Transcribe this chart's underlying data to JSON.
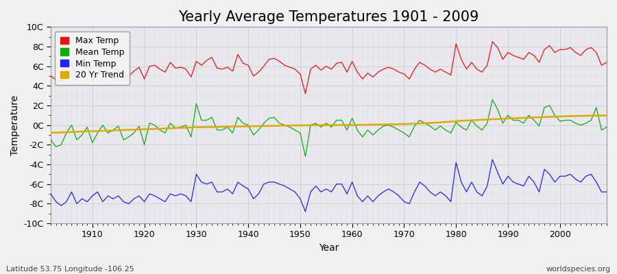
{
  "title": "Yearly Average Temperatures 1901 - 2009",
  "xlabel": "Year",
  "ylabel": "Temperature",
  "footnote_left": "Latitude 53.75 Longitude -106.25",
  "footnote_right": "worldspecies.org",
  "years": [
    1901,
    1902,
    1903,
    1904,
    1905,
    1906,
    1907,
    1908,
    1909,
    1910,
    1911,
    1912,
    1913,
    1914,
    1915,
    1916,
    1917,
    1918,
    1919,
    1920,
    1921,
    1922,
    1923,
    1924,
    1925,
    1926,
    1927,
    1928,
    1929,
    1930,
    1931,
    1932,
    1933,
    1934,
    1935,
    1936,
    1937,
    1938,
    1939,
    1940,
    1941,
    1942,
    1943,
    1944,
    1945,
    1946,
    1947,
    1948,
    1949,
    1950,
    1951,
    1952,
    1953,
    1954,
    1955,
    1956,
    1957,
    1958,
    1959,
    1960,
    1961,
    1962,
    1963,
    1964,
    1965,
    1966,
    1967,
    1968,
    1969,
    1970,
    1971,
    1972,
    1973,
    1974,
    1975,
    1976,
    1977,
    1978,
    1979,
    1980,
    1981,
    1982,
    1983,
    1984,
    1985,
    1986,
    1987,
    1988,
    1989,
    1990,
    1991,
    1992,
    1993,
    1994,
    1995,
    1996,
    1997,
    1998,
    1999,
    2000,
    2001,
    2002,
    2003,
    2004,
    2005,
    2006,
    2007,
    2008,
    2009
  ],
  "max_temp": [
    5.8,
    5.0,
    4.6,
    4.4,
    5.5,
    6.3,
    4.7,
    5.1,
    6.0,
    4.5,
    5.1,
    6.4,
    5.4,
    5.3,
    5.7,
    4.8,
    5.0,
    5.5,
    5.9,
    4.7,
    6.0,
    6.1,
    5.7,
    5.4,
    6.4,
    5.8,
    5.9,
    5.7,
    4.9,
    6.5,
    6.1,
    6.6,
    6.9,
    5.8,
    5.7,
    5.9,
    5.5,
    7.2,
    6.3,
    6.1,
    5.0,
    5.4,
    6.0,
    6.7,
    6.8,
    6.5,
    6.1,
    5.9,
    5.7,
    5.2,
    3.2,
    5.7,
    6.1,
    5.6,
    6.0,
    5.7,
    6.3,
    6.4,
    5.4,
    6.5,
    5.4,
    4.7,
    5.3,
    4.9,
    5.4,
    5.7,
    5.9,
    5.7,
    5.4,
    5.2,
    4.7,
    5.7,
    6.4,
    6.1,
    5.7,
    5.4,
    5.7,
    5.4,
    5.1,
    8.3,
    6.7,
    5.7,
    6.4,
    5.7,
    5.4,
    6.1,
    8.5,
    7.9,
    6.7,
    7.4,
    7.1,
    6.9,
    6.7,
    7.4,
    7.1,
    6.4,
    7.7,
    8.1,
    7.4,
    7.7,
    7.7,
    7.9,
    7.4,
    7.1,
    7.7,
    7.9,
    7.4,
    6.1,
    6.4
  ],
  "mean_temp": [
    -0.8,
    -1.5,
    -2.2,
    -2.0,
    -0.8,
    0.0,
    -1.5,
    -1.0,
    -0.2,
    -1.8,
    -0.8,
    0.0,
    -0.8,
    -0.5,
    -0.1,
    -1.5,
    -1.2,
    -0.8,
    -0.1,
    -2.0,
    0.2,
    0.0,
    -0.5,
    -0.8,
    0.2,
    -0.3,
    -0.2,
    0.0,
    -1.2,
    2.2,
    0.5,
    0.5,
    0.8,
    -0.5,
    -0.5,
    -0.2,
    -0.8,
    0.8,
    0.2,
    0.0,
    -1.0,
    -0.5,
    0.2,
    0.7,
    0.8,
    0.2,
    0.0,
    -0.2,
    -0.5,
    -0.8,
    -3.2,
    0.0,
    0.2,
    -0.2,
    0.2,
    -0.2,
    0.5,
    0.5,
    -0.5,
    0.7,
    -0.5,
    -1.2,
    -0.5,
    -1.0,
    -0.5,
    -0.1,
    0.0,
    -0.2,
    -0.5,
    -0.8,
    -1.2,
    -0.1,
    0.5,
    0.2,
    -0.1,
    -0.5,
    -0.1,
    -0.5,
    -0.8,
    0.3,
    -0.2,
    -0.5,
    0.5,
    -0.1,
    -0.5,
    0.2,
    2.6,
    1.6,
    0.2,
    1.0,
    0.5,
    0.5,
    0.2,
    1.0,
    0.5,
    -0.1,
    1.8,
    2.0,
    1.0,
    0.4,
    0.5,
    0.5,
    0.2,
    0.0,
    0.2,
    0.5,
    1.8,
    -0.5,
    -0.2
  ],
  "min_temp": [
    -8.2,
    -7.0,
    -7.8,
    -8.2,
    -7.8,
    -6.8,
    -8.0,
    -7.5,
    -7.8,
    -7.2,
    -6.8,
    -7.8,
    -7.2,
    -7.5,
    -7.2,
    -7.8,
    -8.0,
    -7.5,
    -7.2,
    -7.8,
    -7.0,
    -7.2,
    -7.5,
    -7.8,
    -7.0,
    -7.2,
    -7.0,
    -7.2,
    -7.8,
    -5.0,
    -5.8,
    -6.0,
    -5.8,
    -6.8,
    -6.8,
    -6.5,
    -7.0,
    -5.8,
    -6.2,
    -6.5,
    -7.5,
    -7.0,
    -6.0,
    -5.8,
    -5.8,
    -6.0,
    -6.2,
    -6.5,
    -6.8,
    -7.5,
    -8.8,
    -6.8,
    -6.2,
    -6.8,
    -6.5,
    -6.8,
    -6.0,
    -6.0,
    -7.0,
    -5.8,
    -7.2,
    -7.8,
    -7.2,
    -7.8,
    -7.2,
    -6.8,
    -6.5,
    -6.8,
    -7.2,
    -7.8,
    -8.0,
    -6.8,
    -5.8,
    -6.2,
    -6.8,
    -7.2,
    -6.8,
    -7.2,
    -7.8,
    -3.8,
    -5.8,
    -6.8,
    -5.8,
    -6.8,
    -7.2,
    -6.2,
    -3.5,
    -4.8,
    -6.0,
    -5.2,
    -5.8,
    -6.0,
    -6.2,
    -5.2,
    -5.8,
    -6.8,
    -4.5,
    -5.0,
    -5.8,
    -5.2,
    -5.2,
    -5.0,
    -5.5,
    -5.8,
    -5.2,
    -5.0,
    -5.8,
    -6.8,
    -6.8
  ],
  "trend_years": [
    1901,
    1902,
    1903,
    1904,
    1905,
    1906,
    1907,
    1908,
    1909,
    1910,
    1911,
    1912,
    1913,
    1914,
    1915,
    1916,
    1917,
    1918,
    1919,
    1920,
    1921,
    1922,
    1923,
    1924,
    1925,
    1926,
    1927,
    1928,
    1929,
    1930,
    1931,
    1932,
    1933,
    1934,
    1935,
    1936,
    1937,
    1938,
    1939,
    1940,
    1941,
    1942,
    1943,
    1944,
    1945,
    1946,
    1947,
    1948,
    1949,
    1950,
    1951,
    1952,
    1953,
    1954,
    1955,
    1956,
    1957,
    1958,
    1959,
    1960,
    1961,
    1962,
    1963,
    1964,
    1965,
    1966,
    1967,
    1968,
    1969,
    1970,
    1971,
    1972,
    1973,
    1974,
    1975,
    1976,
    1977,
    1978,
    1979,
    1980,
    1981,
    1982,
    1983,
    1984,
    1985,
    1986,
    1987,
    1988,
    1989,
    1990,
    1991,
    1992,
    1993,
    1994,
    1995,
    1996,
    1997,
    1998,
    1999,
    2000,
    2001,
    2002,
    2003,
    2004,
    2005,
    2006,
    2007,
    2008,
    2009
  ],
  "trend_vals": [
    -0.8,
    -0.78,
    -0.76,
    -0.74,
    -0.72,
    -0.7,
    -0.68,
    -0.66,
    -0.64,
    -0.62,
    -0.6,
    -0.58,
    -0.56,
    -0.54,
    -0.52,
    -0.5,
    -0.48,
    -0.46,
    -0.44,
    -0.42,
    -0.4,
    -0.38,
    -0.36,
    -0.34,
    -0.32,
    -0.3,
    -0.28,
    -0.26,
    -0.24,
    -0.22,
    -0.21,
    -0.2,
    -0.19,
    -0.18,
    -0.17,
    -0.16,
    -0.15,
    -0.14,
    -0.13,
    -0.12,
    -0.11,
    -0.1,
    -0.09,
    -0.08,
    -0.07,
    -0.06,
    -0.05,
    -0.04,
    -0.03,
    -0.02,
    -0.02,
    -0.01,
    -0.01,
    0.0,
    0.0,
    0.0,
    0.0,
    0.01,
    0.01,
    0.02,
    0.02,
    0.03,
    0.04,
    0.05,
    0.06,
    0.07,
    0.08,
    0.09,
    0.1,
    0.11,
    0.13,
    0.15,
    0.17,
    0.19,
    0.22,
    0.25,
    0.28,
    0.32,
    0.36,
    0.4,
    0.44,
    0.47,
    0.5,
    0.52,
    0.55,
    0.57,
    0.6,
    0.62,
    0.65,
    0.68,
    0.7,
    0.72,
    0.74,
    0.76,
    0.78,
    0.8,
    0.82,
    0.84,
    0.86,
    0.88,
    0.9,
    0.92,
    0.93,
    0.94,
    0.95,
    0.96,
    0.97,
    0.97,
    0.97
  ],
  "max_color": "#ee1111",
  "mean_color": "#11aa11",
  "min_color": "#2222ee",
  "trend_color": "#ddaa00",
  "bg_color": "#f0f0f0",
  "plot_bg_color": "#e8e8ee",
  "grid_major_color": "#cccccc",
  "grid_minor_color": "#dddddd",
  "ylim": [
    -10,
    10
  ],
  "yticks": [
    -10,
    -8,
    -6,
    -4,
    -2,
    0,
    2,
    4,
    6,
    8,
    10
  ],
  "ytick_labels": [
    "-10C",
    "-8C",
    "-6C",
    "-4C",
    "-2C",
    "0C",
    "2C",
    "4C",
    "6C",
    "8C",
    "10C"
  ],
  "xtick_major": [
    1910,
    1920,
    1930,
    1940,
    1950,
    1960,
    1970,
    1980,
    1990,
    2000
  ],
  "xlim": [
    1902,
    2009
  ],
  "title_fontsize": 15,
  "axis_fontsize": 10,
  "tick_fontsize": 9,
  "legend_fontsize": 9
}
